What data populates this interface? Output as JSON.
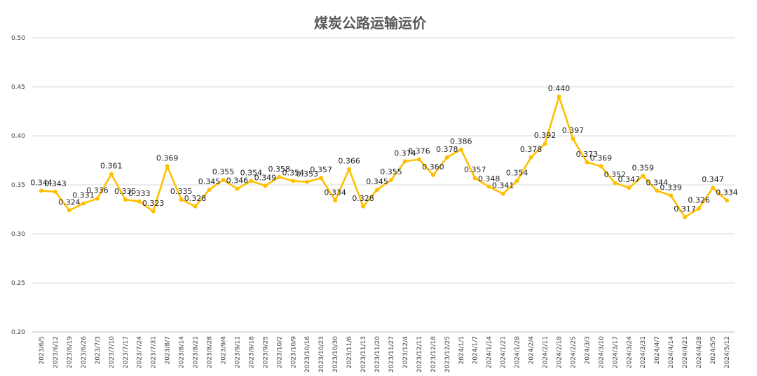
{
  "chart_data": {
    "type": "line",
    "title": "煤炭公路运输运价",
    "xlabel": "",
    "ylabel": "",
    "ylim": [
      0.2,
      0.5
    ],
    "yticks": [
      "0.20",
      "0.25",
      "0.30",
      "0.35",
      "0.40",
      "0.45",
      "0.50"
    ],
    "grid": true,
    "legend": "none",
    "series_color": "#FFC000",
    "categories": [
      "2023/6/5",
      "2023/6/12",
      "2023/6/19",
      "2023/6/26",
      "2023/7/3",
      "2023/7/10",
      "2023/7/17",
      "2023/7/24",
      "2023/7/31",
      "2023/8/7",
      "2023/8/14",
      "2023/8/21",
      "2023/8/28",
      "2023/9/4",
      "2023/9/11",
      "2023/9/18",
      "2023/9/25",
      "2023/10/2",
      "2023/10/9",
      "2023/10/16",
      "2023/10/23",
      "2023/10/30",
      "2023/11/6",
      "2023/11/13",
      "2023/11/20",
      "2023/11/27",
      "2023/12/4",
      "2023/12/11",
      "2023/12/18",
      "2023/12/25",
      "2024/1/1",
      "2024/1/7",
      "2024/1/14",
      "2024/1/21",
      "2024/1/28",
      "2024/2/4",
      "2024/2/11",
      "2024/2/18",
      "2024/2/25",
      "2024/3/3",
      "2024/3/10",
      "2024/3/17",
      "2024/3/24",
      "2024/3/31",
      "2024/4/7",
      "2024/4/14",
      "2024/4/21",
      "2024/4/28",
      "2024/5/5",
      "2024/5/12"
    ],
    "values": [
      0.344,
      0.343,
      0.324,
      0.331,
      0.336,
      0.361,
      0.335,
      0.333,
      0.323,
      0.369,
      0.335,
      0.328,
      0.345,
      0.355,
      0.346,
      0.354,
      0.349,
      0.358,
      0.354,
      0.353,
      0.357,
      0.334,
      0.366,
      0.328,
      0.345,
      0.355,
      0.374,
      0.376,
      0.36,
      0.378,
      0.386,
      0.357,
      0.348,
      0.341,
      0.354,
      0.378,
      0.392,
      0.44,
      0.397,
      0.373,
      0.369,
      0.352,
      0.347,
      0.359,
      0.344,
      0.339,
      0.317,
      0.326,
      0.347,
      0.334
    ],
    "labels": [
      "0.344",
      "0.343",
      "0.324",
      "0.331",
      "0.336",
      "0.361",
      "0.335",
      "0.333",
      "0.323",
      "0.369",
      "0.335",
      "0.328",
      "0.345",
      "0.355",
      "0.346",
      "0.354",
      "0.349",
      "0.358",
      "0.354",
      "0.353",
      "0.357",
      "0.334",
      "0.366",
      "0.328",
      "0.345",
      "0.355",
      "0.374",
      "0.376",
      "0.360",
      "0.378",
      "0.386",
      "0.357",
      "0.348",
      "0.341",
      "0.354",
      "0.378",
      "0.392",
      "0.440",
      "0.397",
      "0.373",
      "0.369",
      "0.352",
      "0.347",
      "0.359",
      "0.344",
      "0.339",
      "0.317",
      "0.326",
      "0.347",
      "0.334"
    ]
  }
}
